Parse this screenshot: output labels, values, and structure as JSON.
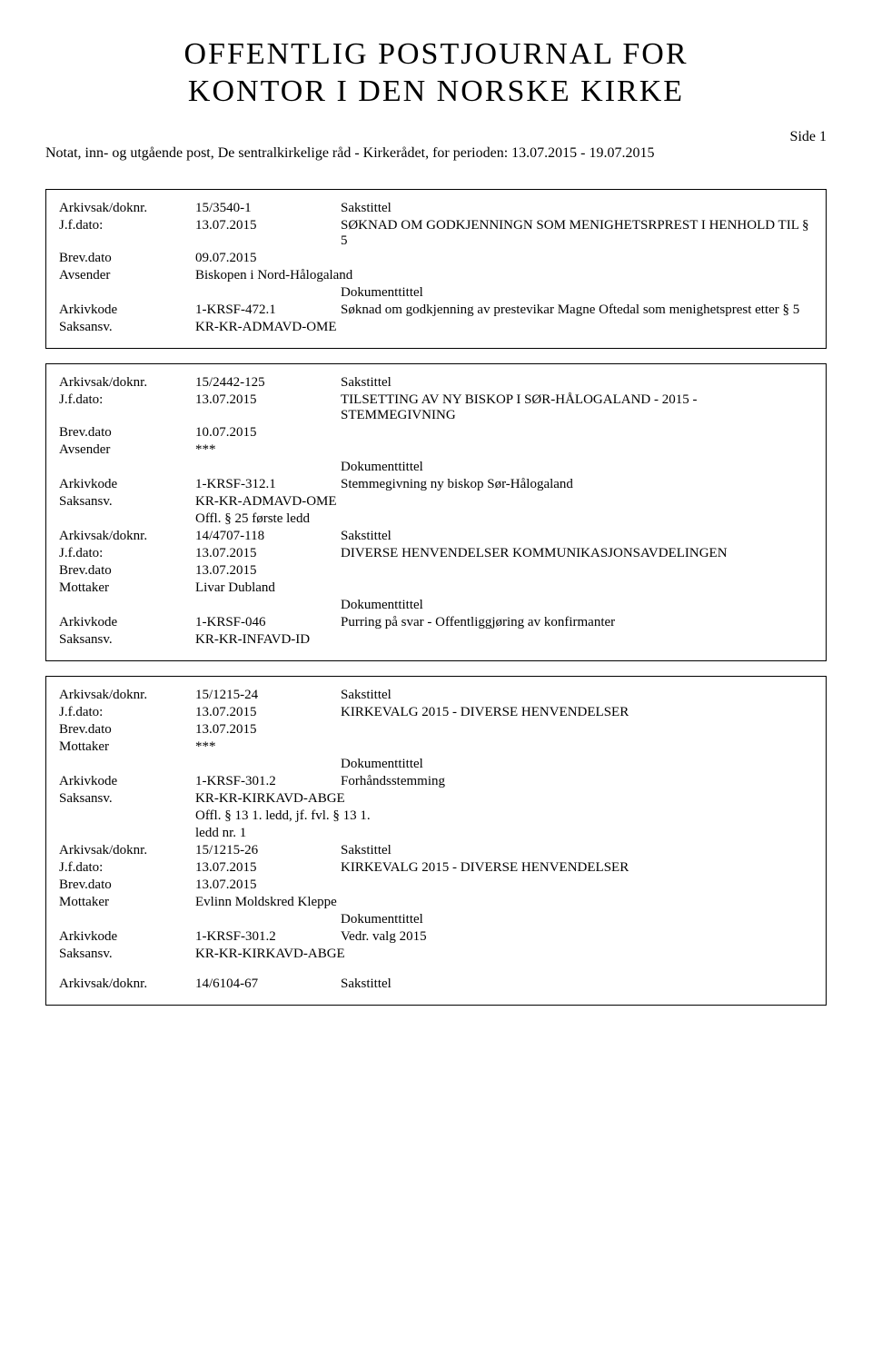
{
  "header": {
    "title_line1": "OFFENTLIG POSTJOURNAL FOR",
    "title_line2": "KONTOR I DEN NORSKE KIRKE",
    "side_label": "Side 1",
    "subtitle": "Notat, inn- og utgående post, De sentralkirkelige råd - Kirkerådet, for perioden: 13.07.2015 - 19.07.2015"
  },
  "labels": {
    "arkivsak": "Arkivsak/doknr.",
    "jfdato": "J.f.dato:",
    "brevdato": "Brev.dato",
    "avsender": "Avsender",
    "mottaker": "Mottaker",
    "arkivkode": "Arkivkode",
    "saksansv": "Saksansv.",
    "sakstittel": "Sakstittel",
    "dokumenttittel": "Dokumenttittel"
  },
  "box1": {
    "r1": {
      "arkivsak": "15/3540-1",
      "jfdato": "13.07.2015",
      "sakstittel": "SØKNAD OM GODKJENNINGN SOM MENIGHETSRPREST I HENHOLD TIL § 5",
      "brevdato": "09.07.2015",
      "avsender": "Biskopen i Nord-Hålogaland",
      "arkivkode": "1-KRSF-472.1",
      "saksansv": "KR-KR-ADMAVD-OME",
      "dokumenttittel": "Søknad om godkjenning av prestevikar Magne Oftedal som menighetsprest etter § 5"
    }
  },
  "box2": {
    "r1": {
      "arkivsak": "15/2442-125",
      "jfdato": "13.07.2015",
      "sakstittel": "TILSETTING AV NY BISKOP I SØR-HÅLOGALAND - 2015 - STEMMEGIVNING",
      "brevdato": "10.07.2015",
      "avsender": "***",
      "arkivkode": "1-KRSF-312.1",
      "saksansv": "KR-KR-ADMAVD-OME",
      "offl": "Offl. § 25 første ledd",
      "dokumenttittel": "Stemmegivning ny biskop Sør-Hålogaland"
    },
    "r2": {
      "arkivsak": "14/4707-118",
      "jfdato": "13.07.2015",
      "sakstittel": "DIVERSE HENVENDELSER KOMMUNIKASJONSAVDELINGEN",
      "brevdato": "13.07.2015",
      "mottaker": "Livar Dubland",
      "arkivkode": "1-KRSF-046",
      "saksansv": "KR-KR-INFAVD-ID",
      "dokumenttittel": "Purring på svar - Offentliggjøring av konfirmanter"
    }
  },
  "box3": {
    "r1": {
      "arkivsak": "15/1215-24",
      "jfdato": "13.07.2015",
      "sakstittel": "KIRKEVALG 2015 - DIVERSE HENVENDELSER",
      "brevdato": "13.07.2015",
      "mottaker": "***",
      "arkivkode": "1-KRSF-301.2",
      "saksansv": "KR-KR-KIRKAVD-ABGE",
      "offl1": "Offl. § 13 1. ledd, jf. fvl. § 13 1.",
      "offl2": "ledd nr. 1",
      "dokumenttittel": "Forhåndsstemming"
    },
    "r2": {
      "arkivsak": "15/1215-26",
      "jfdato": "13.07.2015",
      "sakstittel": "KIRKEVALG 2015 - DIVERSE HENVENDELSER",
      "brevdato": "13.07.2015",
      "mottaker": "Evlinn Moldskred Kleppe",
      "arkivkode": "1-KRSF-301.2",
      "saksansv": "KR-KR-KIRKAVD-ABGE",
      "dokumenttittel": "Vedr. valg 2015"
    },
    "r3": {
      "arkivsak": "14/6104-67",
      "sakstittel": "Sakstittel"
    }
  },
  "style": {
    "title_fontsize": 34,
    "body_fontsize": 15,
    "border_color": "#000000",
    "background_color": "#ffffff",
    "text_color": "#000000"
  }
}
